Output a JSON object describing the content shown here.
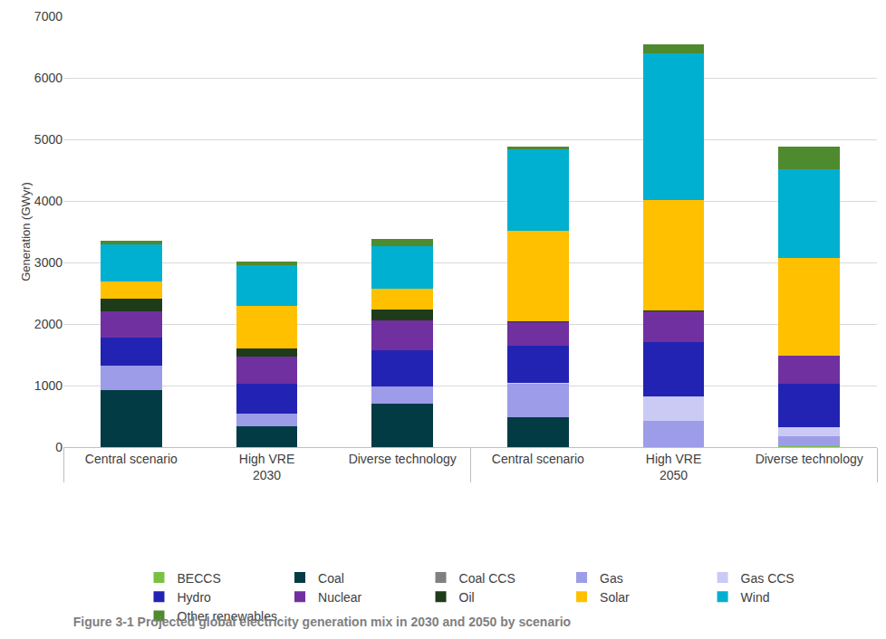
{
  "chart_data": {
    "type": "bar",
    "title": "Figure 3-1 Projected global electricity generation mix in 2030 and 2050 by scenario",
    "y_label": "Generation (GWyr)",
    "categories": [
      [
        "2030",
        "Central scenario"
      ],
      [
        "2030",
        "High VRE"
      ],
      [
        "2030",
        "Diverse technology"
      ],
      [
        "2050",
        "Central scenario"
      ],
      [
        "2050",
        "High VRE"
      ],
      [
        "2050",
        "Diverse technology"
      ]
    ],
    "series": [
      {
        "name": "BECCS",
        "color": "#7ac143",
        "values": [
          0,
          0,
          0,
          0,
          0,
          20
        ]
      },
      {
        "name": "Coal",
        "color": "#023b44",
        "values": [
          920,
          340,
          700,
          490,
          0,
          0
        ]
      },
      {
        "name": "Coal CCS",
        "color": "#808080",
        "values": [
          0,
          0,
          0,
          0,
          0,
          0
        ]
      },
      {
        "name": "Gas",
        "color": "#9c9ce8",
        "values": [
          410,
          210,
          290,
          540,
          430,
          150
        ]
      },
      {
        "name": "Gas CCS",
        "color": "#cacaf4",
        "values": [
          0,
          0,
          0,
          10,
          390,
          160
        ]
      },
      {
        "name": "Hydro",
        "color": "#2323b3",
        "values": [
          450,
          480,
          590,
          610,
          890,
          700
        ]
      },
      {
        "name": "Nuclear",
        "color": "#7030a0",
        "values": [
          420,
          440,
          480,
          380,
          500,
          450
        ]
      },
      {
        "name": "Oil",
        "color": "#1e3b1a",
        "values": [
          210,
          140,
          170,
          10,
          10,
          0
        ]
      },
      {
        "name": "Solar",
        "color": "#ffc000",
        "values": [
          280,
          690,
          340,
          1480,
          1790,
          1590
        ]
      },
      {
        "name": "Wind",
        "color": "#00b0d0",
        "values": [
          610,
          650,
          700,
          1320,
          2380,
          1440
        ]
      },
      {
        "name": "Other renewables",
        "color": "#4e8a2e",
        "values": [
          60,
          70,
          110,
          40,
          160,
          370
        ]
      }
    ],
    "ylim": [
      0,
      7000
    ],
    "yticks": [
      0,
      1000,
      2000,
      3000,
      4000,
      5000,
      6000,
      7000
    ],
    "grid": true,
    "stacked": true,
    "legend": "bottom"
  }
}
